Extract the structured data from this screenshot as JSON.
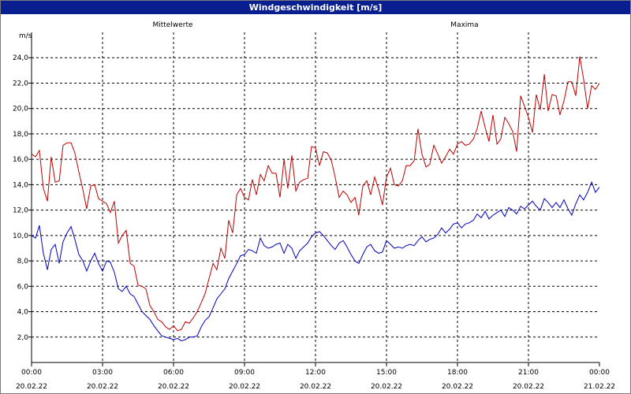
{
  "window": {
    "title": "Windgeschwindigkeit [m/s]"
  },
  "chart_data": {
    "type": "line",
    "title": "Windgeschwindigkeit [m/s]",
    "ylabel": "m/s",
    "ylim": [
      0,
      26
    ],
    "xlim": [
      "00:00",
      "24:00"
    ],
    "grid": true,
    "legend": "top",
    "y_ticks": [
      "2,0",
      "4,0",
      "6,0",
      "8,0",
      "10,0",
      "12,0",
      "14,0",
      "16,0",
      "18,0",
      "20,0",
      "22,0",
      "24,0"
    ],
    "x_ticks": [
      {
        "time": "00:00",
        "date": "20.02.22"
      },
      {
        "time": "03:00",
        "date": "20.02.22"
      },
      {
        "time": "06:00",
        "date": "20.02.22"
      },
      {
        "time": "09:00",
        "date": "20.02.22"
      },
      {
        "time": "12:00",
        "date": "20.02.22"
      },
      {
        "time": "15:00",
        "date": "20.02.22"
      },
      {
        "time": "18:00",
        "date": "20.02.22"
      },
      {
        "time": "21:00",
        "date": "20.02.22"
      },
      {
        "time": "00:00",
        "date": "21.02.22"
      }
    ],
    "series": [
      {
        "name": "Mittelwerte",
        "color": "#0000c0",
        "points": [
          [
            0.0,
            10.0
          ],
          [
            0.17,
            9.8
          ],
          [
            0.33,
            10.8
          ],
          [
            0.5,
            8.6
          ],
          [
            0.67,
            7.3
          ],
          [
            0.83,
            8.9
          ],
          [
            1.0,
            9.3
          ],
          [
            1.17,
            7.8
          ],
          [
            1.33,
            9.5
          ],
          [
            1.5,
            10.2
          ],
          [
            1.67,
            10.7
          ],
          [
            1.83,
            9.7
          ],
          [
            2.0,
            8.5
          ],
          [
            2.17,
            8.0
          ],
          [
            2.33,
            7.2
          ],
          [
            2.5,
            8.0
          ],
          [
            2.67,
            8.6
          ],
          [
            2.83,
            7.8
          ],
          [
            3.0,
            7.2
          ],
          [
            3.17,
            8.0
          ],
          [
            3.33,
            7.9
          ],
          [
            3.5,
            7.1
          ],
          [
            3.67,
            5.8
          ],
          [
            3.83,
            5.6
          ],
          [
            4.0,
            6.0
          ],
          [
            4.17,
            5.4
          ],
          [
            4.33,
            5.2
          ],
          [
            4.5,
            4.6
          ],
          [
            4.67,
            4.0
          ],
          [
            4.83,
            3.7
          ],
          [
            5.0,
            3.4
          ],
          [
            5.17,
            2.9
          ],
          [
            5.33,
            2.5
          ],
          [
            5.5,
            2.1
          ],
          [
            5.67,
            2.0
          ],
          [
            5.83,
            1.9
          ],
          [
            6.0,
            1.8
          ],
          [
            6.17,
            1.9
          ],
          [
            6.33,
            1.7
          ],
          [
            6.5,
            1.8
          ],
          [
            6.67,
            2.0
          ],
          [
            6.83,
            2.0
          ],
          [
            7.0,
            2.1
          ],
          [
            7.17,
            2.8
          ],
          [
            7.33,
            3.3
          ],
          [
            7.5,
            3.6
          ],
          [
            7.67,
            4.3
          ],
          [
            7.83,
            5.0
          ],
          [
            8.0,
            5.4
          ],
          [
            8.17,
            5.8
          ],
          [
            8.33,
            6.6
          ],
          [
            8.5,
            7.2
          ],
          [
            8.67,
            7.8
          ],
          [
            8.83,
            8.4
          ],
          [
            9.0,
            8.5
          ],
          [
            9.17,
            8.9
          ],
          [
            9.33,
            8.8
          ],
          [
            9.5,
            8.6
          ],
          [
            9.67,
            9.8
          ],
          [
            9.83,
            9.2
          ],
          [
            10.0,
            9.0
          ],
          [
            10.17,
            9.1
          ],
          [
            10.33,
            9.3
          ],
          [
            10.5,
            9.4
          ],
          [
            10.67,
            8.6
          ],
          [
            10.83,
            9.3
          ],
          [
            11.0,
            9.0
          ],
          [
            11.17,
            8.2
          ],
          [
            11.33,
            8.8
          ],
          [
            11.5,
            9.1
          ],
          [
            11.67,
            9.4
          ],
          [
            11.83,
            9.9
          ],
          [
            12.0,
            10.2
          ],
          [
            12.17,
            10.3
          ],
          [
            12.33,
            10.0
          ],
          [
            12.5,
            9.6
          ],
          [
            12.67,
            9.2
          ],
          [
            12.83,
            8.9
          ],
          [
            13.0,
            9.4
          ],
          [
            13.17,
            9.6
          ],
          [
            13.33,
            9.1
          ],
          [
            13.5,
            8.5
          ],
          [
            13.67,
            8.0
          ],
          [
            13.83,
            7.8
          ],
          [
            14.0,
            8.5
          ],
          [
            14.17,
            9.1
          ],
          [
            14.33,
            9.3
          ],
          [
            14.5,
            8.8
          ],
          [
            14.67,
            8.6
          ],
          [
            14.83,
            8.7
          ],
          [
            15.0,
            9.6
          ],
          [
            15.17,
            9.3
          ],
          [
            15.33,
            9.0
          ],
          [
            15.5,
            9.1
          ],
          [
            15.67,
            9.0
          ],
          [
            15.83,
            9.2
          ],
          [
            16.0,
            9.3
          ],
          [
            16.17,
            9.2
          ],
          [
            16.33,
            9.6
          ],
          [
            16.5,
            9.9
          ],
          [
            16.67,
            9.5
          ],
          [
            16.83,
            9.7
          ],
          [
            17.0,
            9.8
          ],
          [
            17.17,
            10.1
          ],
          [
            17.33,
            10.6
          ],
          [
            17.5,
            10.2
          ],
          [
            17.67,
            10.5
          ],
          [
            17.83,
            10.9
          ],
          [
            18.0,
            11.0
          ],
          [
            18.17,
            10.6
          ],
          [
            18.33,
            10.9
          ],
          [
            18.5,
            11.0
          ],
          [
            18.67,
            11.2
          ],
          [
            18.83,
            11.7
          ],
          [
            19.0,
            11.4
          ],
          [
            19.17,
            11.9
          ],
          [
            19.33,
            11.3
          ],
          [
            19.5,
            11.6
          ],
          [
            19.67,
            11.8
          ],
          [
            19.83,
            12.0
          ],
          [
            20.0,
            11.5
          ],
          [
            20.17,
            12.2
          ],
          [
            20.33,
            12.0
          ],
          [
            20.5,
            11.7
          ],
          [
            20.67,
            12.3
          ],
          [
            20.83,
            12.1
          ],
          [
            21.0,
            12.4
          ],
          [
            21.17,
            12.7
          ],
          [
            21.33,
            12.3
          ],
          [
            21.5,
            12.0
          ],
          [
            21.67,
            12.9
          ],
          [
            21.83,
            12.6
          ],
          [
            22.0,
            12.2
          ],
          [
            22.17,
            12.6
          ],
          [
            22.33,
            12.2
          ],
          [
            22.5,
            12.8
          ],
          [
            22.67,
            12.1
          ],
          [
            22.83,
            11.6
          ],
          [
            23.0,
            12.5
          ],
          [
            23.17,
            13.2
          ],
          [
            23.33,
            12.8
          ],
          [
            23.5,
            13.4
          ],
          [
            23.67,
            14.2
          ],
          [
            23.83,
            13.4
          ],
          [
            24.0,
            13.8
          ]
        ]
      },
      {
        "name": "Maxima",
        "color": "#c00000",
        "points": [
          [
            0.0,
            16.4
          ],
          [
            0.17,
            16.2
          ],
          [
            0.33,
            16.7
          ],
          [
            0.5,
            13.7
          ],
          [
            0.67,
            12.7
          ],
          [
            0.83,
            16.2
          ],
          [
            1.0,
            14.2
          ],
          [
            1.17,
            14.3
          ],
          [
            1.33,
            17.1
          ],
          [
            1.5,
            17.3
          ],
          [
            1.67,
            17.3
          ],
          [
            1.83,
            16.5
          ],
          [
            2.0,
            15.0
          ],
          [
            2.17,
            13.6
          ],
          [
            2.33,
            12.1
          ],
          [
            2.5,
            13.9
          ],
          [
            2.67,
            14.0
          ],
          [
            2.83,
            12.9
          ],
          [
            3.0,
            12.7
          ],
          [
            3.17,
            12.5
          ],
          [
            3.33,
            11.8
          ],
          [
            3.5,
            12.7
          ],
          [
            3.67,
            9.4
          ],
          [
            3.83,
            10.0
          ],
          [
            4.0,
            10.4
          ],
          [
            4.17,
            7.8
          ],
          [
            4.33,
            7.6
          ],
          [
            4.5,
            6.1
          ],
          [
            4.67,
            6.0
          ],
          [
            4.83,
            5.8
          ],
          [
            5.0,
            4.5
          ],
          [
            5.17,
            4.0
          ],
          [
            5.33,
            3.4
          ],
          [
            5.5,
            3.2
          ],
          [
            5.67,
            2.8
          ],
          [
            5.83,
            2.6
          ],
          [
            6.0,
            2.9
          ],
          [
            6.17,
            2.5
          ],
          [
            6.33,
            2.6
          ],
          [
            6.5,
            3.2
          ],
          [
            6.67,
            3.1
          ],
          [
            6.83,
            3.5
          ],
          [
            7.0,
            4.0
          ],
          [
            7.17,
            4.7
          ],
          [
            7.33,
            5.4
          ],
          [
            7.5,
            6.6
          ],
          [
            7.67,
            7.8
          ],
          [
            7.83,
            7.3
          ],
          [
            8.0,
            9.0
          ],
          [
            8.17,
            8.2
          ],
          [
            8.33,
            11.2
          ],
          [
            8.5,
            10.2
          ],
          [
            8.67,
            13.2
          ],
          [
            8.83,
            13.7
          ],
          [
            9.0,
            13.0
          ],
          [
            9.17,
            12.8
          ],
          [
            9.33,
            14.4
          ],
          [
            9.5,
            13.2
          ],
          [
            9.67,
            14.8
          ],
          [
            9.83,
            14.3
          ],
          [
            10.0,
            15.5
          ],
          [
            10.17,
            14.9
          ],
          [
            10.33,
            14.9
          ],
          [
            10.5,
            13.0
          ],
          [
            10.67,
            16.0
          ],
          [
            10.83,
            13.7
          ],
          [
            11.0,
            16.3
          ],
          [
            11.17,
            13.5
          ],
          [
            11.33,
            14.2
          ],
          [
            11.5,
            14.4
          ],
          [
            11.67,
            14.5
          ],
          [
            11.83,
            17.0
          ],
          [
            12.0,
            16.9
          ],
          [
            12.17,
            15.5
          ],
          [
            12.33,
            16.6
          ],
          [
            12.5,
            16.5
          ],
          [
            12.67,
            15.9
          ],
          [
            12.83,
            14.6
          ],
          [
            13.0,
            13.0
          ],
          [
            13.17,
            13.5
          ],
          [
            13.33,
            13.2
          ],
          [
            13.5,
            12.6
          ],
          [
            13.67,
            13.0
          ],
          [
            13.83,
            11.6
          ],
          [
            14.0,
            13.9
          ],
          [
            14.17,
            14.3
          ],
          [
            14.33,
            13.2
          ],
          [
            14.5,
            14.6
          ],
          [
            14.67,
            13.6
          ],
          [
            14.83,
            12.4
          ],
          [
            15.0,
            14.6
          ],
          [
            15.17,
            15.3
          ],
          [
            15.33,
            14.0
          ],
          [
            15.5,
            13.9
          ],
          [
            15.67,
            14.3
          ],
          [
            15.83,
            15.5
          ],
          [
            16.0,
            15.5
          ],
          [
            16.17,
            15.9
          ],
          [
            16.33,
            18.4
          ],
          [
            16.5,
            16.4
          ],
          [
            16.67,
            15.4
          ],
          [
            16.83,
            15.6
          ],
          [
            17.0,
            17.1
          ],
          [
            17.17,
            16.4
          ],
          [
            17.33,
            15.7
          ],
          [
            17.5,
            16.2
          ],
          [
            17.67,
            16.8
          ],
          [
            17.83,
            16.4
          ],
          [
            18.0,
            17.2
          ],
          [
            18.17,
            17.4
          ],
          [
            18.33,
            17.1
          ],
          [
            18.5,
            17.2
          ],
          [
            18.67,
            17.6
          ],
          [
            18.83,
            18.4
          ],
          [
            19.0,
            19.8
          ],
          [
            19.17,
            18.5
          ],
          [
            19.33,
            17.4
          ],
          [
            19.5,
            19.5
          ],
          [
            19.67,
            17.2
          ],
          [
            19.83,
            17.6
          ],
          [
            20.0,
            19.3
          ],
          [
            20.17,
            18.8
          ],
          [
            20.33,
            18.2
          ],
          [
            20.5,
            16.6
          ],
          [
            20.67,
            21.0
          ],
          [
            20.83,
            20.2
          ],
          [
            21.0,
            19.3
          ],
          [
            21.17,
            18.1
          ],
          [
            21.33,
            21.1
          ],
          [
            21.5,
            19.9
          ],
          [
            21.67,
            22.7
          ],
          [
            21.83,
            19.8
          ],
          [
            22.0,
            21.1
          ],
          [
            22.17,
            21.0
          ],
          [
            22.33,
            19.5
          ],
          [
            22.5,
            20.6
          ],
          [
            22.67,
            22.1
          ],
          [
            22.83,
            22.1
          ],
          [
            23.0,
            21.0
          ],
          [
            23.17,
            24.1
          ],
          [
            23.33,
            22.3
          ],
          [
            23.5,
            20.0
          ],
          [
            23.67,
            21.8
          ],
          [
            23.83,
            21.5
          ],
          [
            24.0,
            22.0
          ]
        ]
      }
    ]
  }
}
